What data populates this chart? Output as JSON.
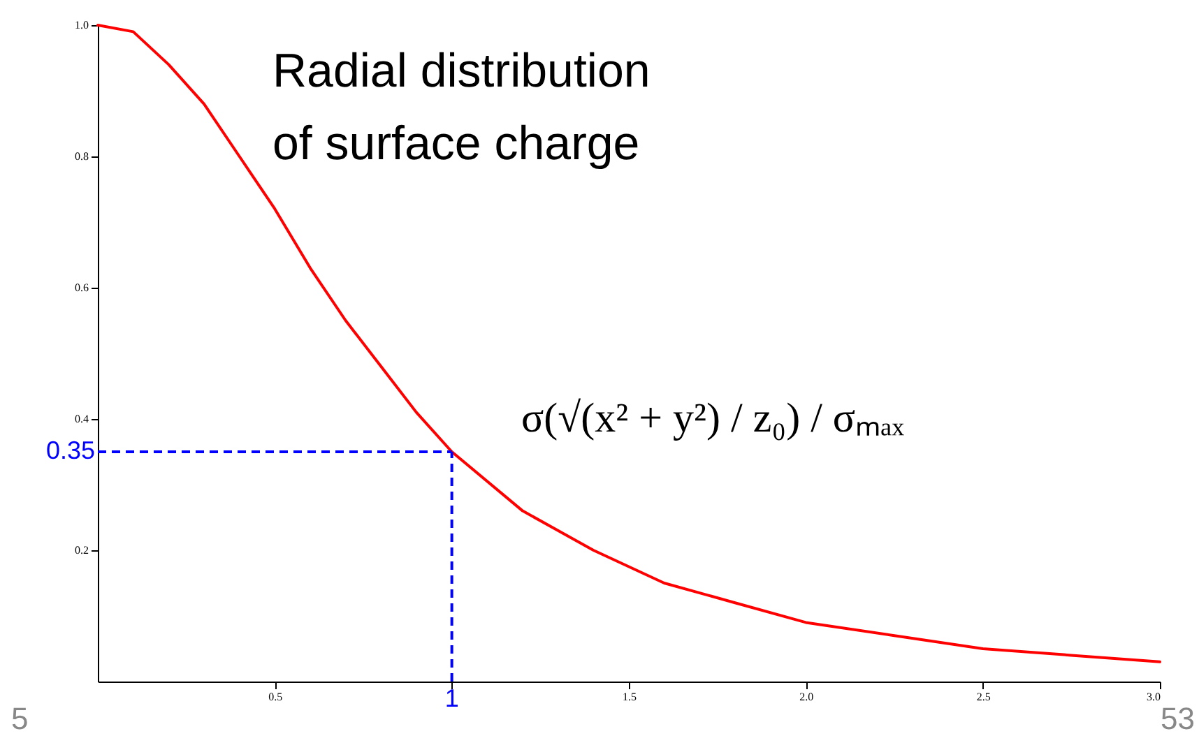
{
  "chart_data": {
    "type": "line",
    "title": "Radial distribution\nof surface charge",
    "x": [
      0,
      0.1,
      0.2,
      0.3,
      0.4,
      0.5,
      0.6,
      0.7,
      0.8,
      0.9,
      1.0,
      1.2,
      1.4,
      1.6,
      1.8,
      2.0,
      2.25,
      2.5,
      2.75,
      3.0
    ],
    "series": [
      {
        "color": "#ff0000",
        "values": [
          1.0,
          0.99,
          0.94,
          0.88,
          0.8,
          0.72,
          0.63,
          0.55,
          0.48,
          0.41,
          0.35,
          0.26,
          0.2,
          0.15,
          0.12,
          0.09,
          0.07,
          0.05,
          0.04,
          0.03
        ]
      }
    ],
    "xlim": [
      0,
      3.0
    ],
    "ylim": [
      0,
      1.0
    ],
    "xticks": [
      0.5,
      {
        "value": 1,
        "label": null
      },
      1.5,
      {
        "value": 2,
        "label": "2.0"
      },
      2.5,
      {
        "value": 3,
        "label": "3.0"
      }
    ],
    "yticks": [
      0.2,
      0.4,
      0.6,
      0.8,
      {
        "value": 1,
        "label": "1.0"
      }
    ],
    "grid": false,
    "marker": "none",
    "line_style": "solid",
    "ref_lines": [
      {
        "axis": "x",
        "value": 1,
        "label": "1",
        "color": "#0000ff",
        "line_style": "dashed"
      },
      {
        "axis": "y",
        "value": 0.35,
        "label": "0.35",
        "color": "#0000ff",
        "line_style": "dashed"
      }
    ],
    "annotations": [
      "σ(√(x² + y²) / z₀) / σₘₐₓ",
      "5",
      "53"
    ]
  }
}
